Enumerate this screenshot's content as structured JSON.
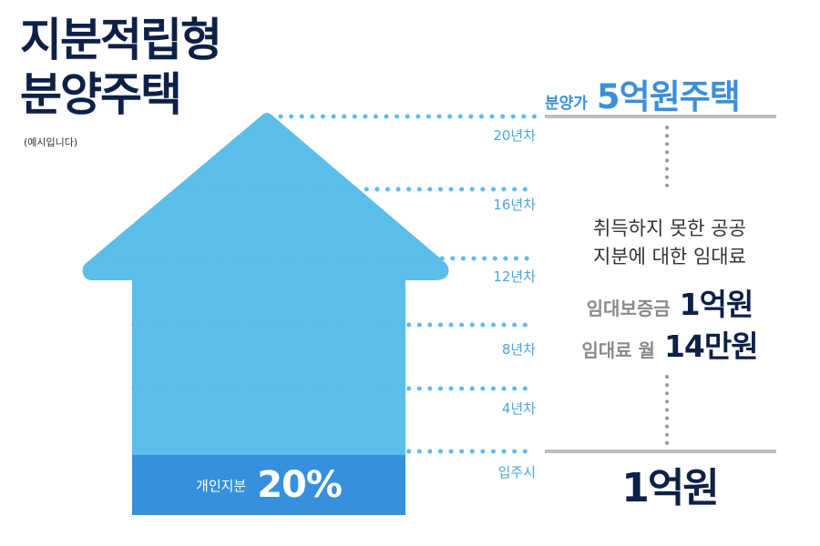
{
  "title": {
    "line1": "지분적립형",
    "line2": "분양주택"
  },
  "note": "(예시입니다)",
  "stages": [
    {
      "label": "20년차"
    },
    {
      "label": "16년차"
    },
    {
      "label": "12년차"
    },
    {
      "label": "8년차"
    },
    {
      "label": "4년차"
    },
    {
      "label": "입주시"
    }
  ],
  "personal_share": {
    "label": "개인지분",
    "value": "20%",
    "fraction": 0.2
  },
  "sale_price": {
    "label": "분양가",
    "value": "5억원주택"
  },
  "rent_description": {
    "line1": "취득하지 못한 공공",
    "line2": "지분에 대한 임대료"
  },
  "deposit": {
    "label": "임대보증금",
    "value": "1억원"
  },
  "monthly_rent": {
    "label": "임대료 월",
    "value": "14만원"
  },
  "move_in_amount": "1억원",
  "colors": {
    "arrow": "#5bbdea",
    "share": "#3590dd",
    "navy": "#0d2147",
    "accent_blue": "#3b8fd9",
    "dots": "#5bbdea",
    "rule": "#bdbdbd",
    "vertical_dots": "#9a9a9a"
  }
}
